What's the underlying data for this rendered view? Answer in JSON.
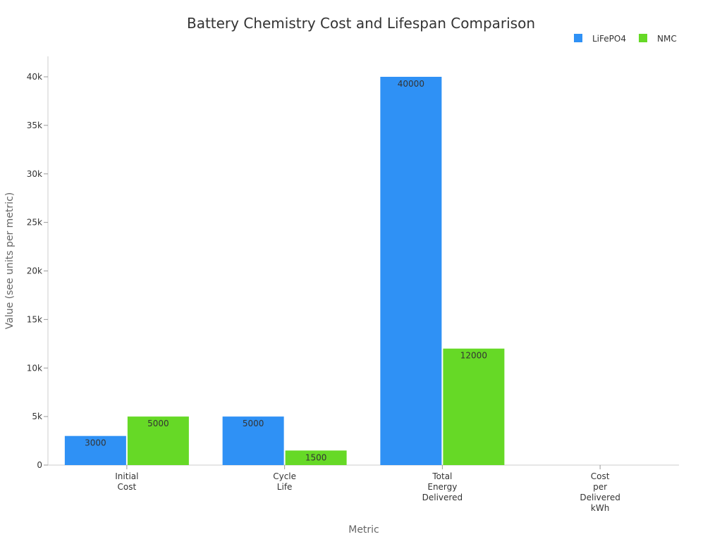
{
  "chart_data": {
    "type": "bar",
    "title": "Battery Chemistry Cost and Lifespan Comparison",
    "xlabel": "Metric",
    "ylabel": "Value (see units per metric)",
    "categories": [
      [
        "Initial",
        "Cost"
      ],
      [
        "Cycle",
        "Life"
      ],
      [
        "Total",
        "Energy",
        "Delivered"
      ],
      [
        "Cost",
        "per",
        "Delivered",
        "kWh"
      ]
    ],
    "series": [
      {
        "name": "LiFePO4",
        "color": "#2f91f5",
        "values": [
          3000,
          5000,
          40000,
          null
        ]
      },
      {
        "name": "NMC",
        "color": "#66d926",
        "values": [
          5000,
          1500,
          12000,
          null
        ]
      }
    ],
    "ylim": [
      0,
      42000
    ],
    "yticks": [
      0,
      5000,
      10000,
      15000,
      20000,
      25000,
      30000,
      35000,
      40000
    ],
    "ytick_labels": [
      "0",
      "5k",
      "10k",
      "15k",
      "20k",
      "25k",
      "30k",
      "35k",
      "40k"
    ],
    "grid": false,
    "legend": "top-right",
    "data_labels": true
  }
}
